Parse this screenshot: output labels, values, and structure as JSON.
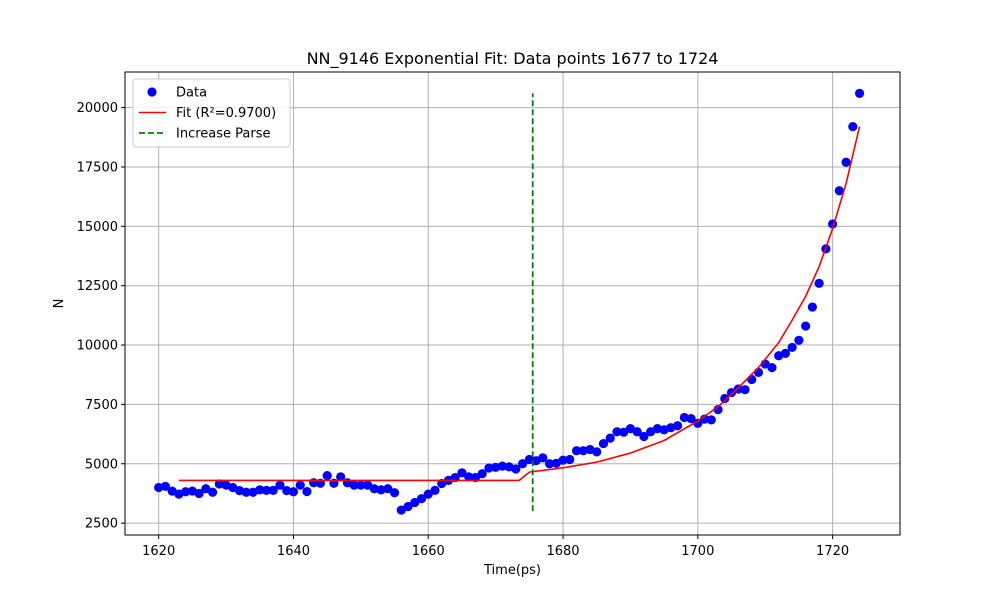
{
  "chart_data": {
    "type": "scatter",
    "title": "NN_9146 Exponential Fit: Data points 1677 to 1724",
    "xlabel": "Time(ps)",
    "ylabel": "N",
    "xlim": [
      1615,
      1730
    ],
    "ylim": [
      2000,
      21500
    ],
    "x_ticks": [
      1620,
      1640,
      1660,
      1680,
      1700,
      1720
    ],
    "y_ticks": [
      2500,
      5000,
      7500,
      10000,
      12500,
      15000,
      17500,
      20000
    ],
    "x_tick_labels": [
      "1620",
      "1640",
      "1660",
      "1680",
      "1700",
      "1720"
    ],
    "y_tick_labels": [
      "2500",
      "5000",
      "7500",
      "10000",
      "12500",
      "15000",
      "17500",
      "20000"
    ],
    "grid": true,
    "legend_position": "top-left",
    "colors": {
      "data": "#0000ff",
      "fit": "#ff0000",
      "parse": "#008000"
    },
    "legend": [
      {
        "label": "Data",
        "kind": "marker",
        "color": "#0000ff"
      },
      {
        "label": "Fit (R²=0.9700)",
        "kind": "line",
        "color": "#ff0000"
      },
      {
        "label": "Increase Parse",
        "kind": "dashed-line",
        "color": "#008000"
      }
    ],
    "series": [
      {
        "name": "Data",
        "kind": "scatter",
        "color": "#0000ff",
        "points": [
          [
            1620,
            4000
          ],
          [
            1621,
            4050
          ],
          [
            1622,
            3850
          ],
          [
            1623,
            3720
          ],
          [
            1624,
            3820
          ],
          [
            1625,
            3850
          ],
          [
            1626,
            3750
          ],
          [
            1627,
            3950
          ],
          [
            1628,
            3800
          ],
          [
            1629,
            4150
          ],
          [
            1630,
            4100
          ],
          [
            1631,
            4000
          ],
          [
            1632,
            3870
          ],
          [
            1633,
            3800
          ],
          [
            1634,
            3800
          ],
          [
            1635,
            3900
          ],
          [
            1636,
            3880
          ],
          [
            1637,
            3880
          ],
          [
            1638,
            4100
          ],
          [
            1639,
            3870
          ],
          [
            1640,
            3820
          ],
          [
            1641,
            4100
          ],
          [
            1642,
            3830
          ],
          [
            1643,
            4200
          ],
          [
            1644,
            4180
          ],
          [
            1645,
            4500
          ],
          [
            1646,
            4180
          ],
          [
            1647,
            4450
          ],
          [
            1648,
            4200
          ],
          [
            1649,
            4100
          ],
          [
            1650,
            4100
          ],
          [
            1651,
            4100
          ],
          [
            1652,
            3950
          ],
          [
            1653,
            3900
          ],
          [
            1654,
            3950
          ],
          [
            1655,
            3780
          ],
          [
            1656,
            3050
          ],
          [
            1657,
            3200
          ],
          [
            1658,
            3370
          ],
          [
            1659,
            3530
          ],
          [
            1660,
            3720
          ],
          [
            1661,
            3880
          ],
          [
            1662,
            4170
          ],
          [
            1663,
            4300
          ],
          [
            1664,
            4420
          ],
          [
            1665,
            4620
          ],
          [
            1666,
            4450
          ],
          [
            1667,
            4420
          ],
          [
            1668,
            4580
          ],
          [
            1669,
            4820
          ],
          [
            1670,
            4850
          ],
          [
            1671,
            4900
          ],
          [
            1672,
            4870
          ],
          [
            1673,
            4780
          ],
          [
            1674,
            5000
          ],
          [
            1675,
            5180
          ],
          [
            1676,
            5130
          ],
          [
            1677,
            5250
          ],
          [
            1678,
            5000
          ],
          [
            1679,
            5020
          ],
          [
            1680,
            5150
          ],
          [
            1681,
            5180
          ],
          [
            1682,
            5550
          ],
          [
            1683,
            5550
          ],
          [
            1684,
            5600
          ],
          [
            1685,
            5500
          ],
          [
            1686,
            5850
          ],
          [
            1687,
            6080
          ],
          [
            1688,
            6350
          ],
          [
            1689,
            6330
          ],
          [
            1690,
            6480
          ],
          [
            1691,
            6350
          ],
          [
            1692,
            6150
          ],
          [
            1693,
            6350
          ],
          [
            1694,
            6480
          ],
          [
            1695,
            6430
          ],
          [
            1696,
            6520
          ],
          [
            1697,
            6600
          ],
          [
            1698,
            6950
          ],
          [
            1699,
            6900
          ],
          [
            1700,
            6700
          ],
          [
            1701,
            6880
          ],
          [
            1702,
            6850
          ],
          [
            1703,
            7280
          ],
          [
            1704,
            7750
          ],
          [
            1705,
            8000
          ],
          [
            1706,
            8150
          ],
          [
            1707,
            8120
          ],
          [
            1708,
            8550
          ],
          [
            1709,
            8850
          ],
          [
            1710,
            9200
          ],
          [
            1711,
            9050
          ],
          [
            1712,
            9550
          ],
          [
            1713,
            9650
          ],
          [
            1714,
            9900
          ],
          [
            1715,
            10200
          ],
          [
            1716,
            10800
          ],
          [
            1717,
            11600
          ],
          [
            1718,
            12600
          ],
          [
            1719,
            14050
          ],
          [
            1720,
            15100
          ],
          [
            1721,
            16500
          ],
          [
            1722,
            17700
          ],
          [
            1723,
            19200
          ],
          [
            1724,
            20600
          ]
        ]
      },
      {
        "name": "Fit (R²=0.9700)",
        "kind": "line",
        "color": "#ff0000",
        "points": [
          [
            1623,
            4300
          ],
          [
            1673.5,
            4300
          ],
          [
            1675,
            4650
          ],
          [
            1680,
            4830
          ],
          [
            1685,
            5070
          ],
          [
            1690,
            5450
          ],
          [
            1695,
            5980
          ],
          [
            1700,
            6800
          ],
          [
            1703,
            7400
          ],
          [
            1706,
            8200
          ],
          [
            1709,
            9050
          ],
          [
            1712,
            10100
          ],
          [
            1714,
            11050
          ],
          [
            1716,
            12050
          ],
          [
            1718,
            13300
          ],
          [
            1720,
            14900
          ],
          [
            1722,
            16800
          ],
          [
            1724,
            19200
          ]
        ]
      },
      {
        "name": "Increase Parse",
        "kind": "dashed-vline",
        "color": "#008000",
        "points": [
          [
            1675.5,
            3000
          ],
          [
            1675.5,
            20600
          ]
        ]
      }
    ]
  }
}
